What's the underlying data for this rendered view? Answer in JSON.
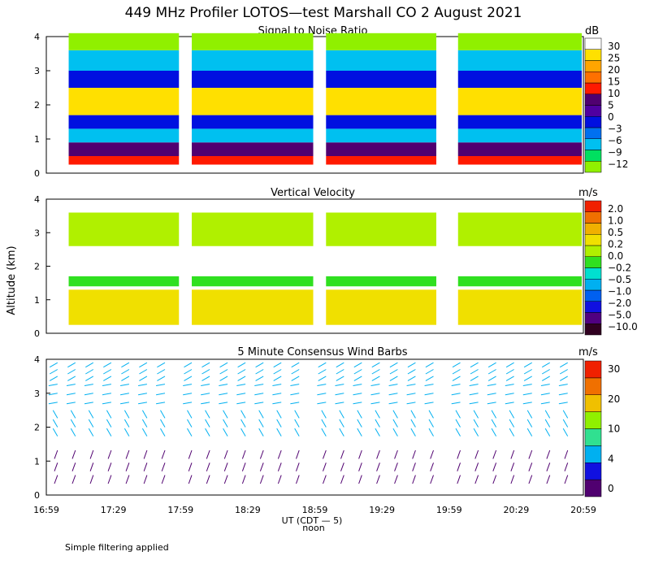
{
  "figure_title": "449 MHz Profiler LOTOS—test Marshall CO  2 August 2021",
  "ylabel": "Altitude (km)",
  "xlabel": "UT  (CDT — 5)",
  "x_sublabel": "noon",
  "footnote": "Simple filtering applied",
  "x_tick_labels": [
    "16:59",
    "17:29",
    "17:59",
    "18:29",
    "18:59",
    "19:29",
    "19:59",
    "20:29",
    "20:59"
  ],
  "colors": {
    "snr": [
      "#90f000",
      "#00e060",
      "#00c0f0",
      "#0070f0",
      "#0010e0",
      "#5000a0",
      "#500070",
      "#ff1a00",
      "#ff7000",
      "#ffa500",
      "#ffe000",
      "#ffffff"
    ],
    "velocity": [
      "#300020",
      "#500080",
      "#1010e0",
      "#0060f0",
      "#00b0f0",
      "#00e0d0",
      "#30e020",
      "#b0f000",
      "#f0e000",
      "#f0b000",
      "#f07000",
      "#f02000"
    ],
    "wind": [
      "#500070",
      "#1010e0",
      "#00b0f0",
      "#30e090",
      "#90f000",
      "#f0c000",
      "#f07000",
      "#f02000"
    ]
  },
  "chart_data": [
    {
      "type": "heatmap",
      "title": "Signal to Noise Ratio",
      "ylabel": "Altitude (km)",
      "ylim": [
        0,
        4
      ],
      "y_ticks": [
        0,
        1,
        2,
        3,
        4
      ],
      "colorbar_unit": "dB",
      "colorbar_ticks": [
        "30",
        "25",
        "20",
        "15",
        "10",
        "5",
        "0",
        "−3",
        "−6",
        "−9",
        "−12"
      ],
      "colorbar_values": [
        -12,
        -9,
        -6,
        -3,
        0,
        5,
        10,
        15,
        20,
        25,
        30
      ],
      "data_segments_ut": [
        [
          "17:09",
          "17:59"
        ],
        [
          "18:04",
          "18:59"
        ],
        [
          "19:04",
          "19:54"
        ],
        [
          "20:03",
          "20:59"
        ]
      ],
      "layers": [
        {
          "alt_range_km": [
            0.25,
            0.5
          ],
          "value_db": 12
        },
        {
          "alt_range_km": [
            0.5,
            0.9
          ],
          "value_db": 7
        },
        {
          "alt_range_km": [
            0.9,
            1.3
          ],
          "value_db": -4
        },
        {
          "alt_range_km": [
            1.3,
            1.7
          ],
          "value_db": 2
        },
        {
          "alt_range_km": [
            1.7,
            2.5
          ],
          "value_db": 28
        },
        {
          "alt_range_km": [
            2.5,
            3.0
          ],
          "value_db": 1
        },
        {
          "alt_range_km": [
            3.0,
            3.6
          ],
          "value_db": -6
        },
        {
          "alt_range_km": [
            3.6,
            4.1
          ],
          "value_db": -12
        }
      ]
    },
    {
      "type": "heatmap",
      "title": "Vertical Velocity",
      "ylabel": "Altitude (km)",
      "ylim": [
        0,
        4
      ],
      "y_ticks": [
        0,
        1,
        2,
        3,
        4
      ],
      "colorbar_unit": "m/s",
      "colorbar_ticks": [
        "2.0",
        "1.0",
        "0.5",
        "0.2",
        "0.0",
        "−0.2",
        "−0.5",
        "−1.0",
        "−2.0",
        "−5.0",
        "−10.0"
      ],
      "colorbar_values": [
        -10.0,
        -5.0,
        -2.0,
        -1.0,
        -0.5,
        -0.2,
        0.0,
        0.2,
        0.5,
        1.0,
        2.0
      ],
      "data_segments_ut": [
        [
          "17:09",
          "17:59"
        ],
        [
          "18:04",
          "18:59"
        ],
        [
          "19:04",
          "19:54"
        ],
        [
          "20:03",
          "20:59"
        ]
      ],
      "layers": [
        {
          "alt_range_km": [
            0.25,
            1.3
          ],
          "value_ms": 0.3
        },
        {
          "alt_range_km": [
            1.4,
            1.7
          ],
          "value_ms": -0.1
        },
        {
          "alt_range_km": [
            2.6,
            3.6
          ],
          "value_ms": 0.1
        }
      ]
    },
    {
      "type": "scatter",
      "title": "5 Minute Consensus Wind Barbs",
      "ylabel": "Altitude (km)",
      "ylim": [
        0,
        4
      ],
      "y_ticks": [
        0,
        1,
        2,
        3,
        4
      ],
      "colorbar_unit": "m/s",
      "colorbar_ticks": [
        "30",
        "20",
        "10",
        "4",
        "0"
      ],
      "colorbar_values": [
        0,
        4,
        10,
        20,
        30
      ],
      "layers": [
        {
          "alt_range_km": [
            0.4,
            1.5
          ],
          "speed_ms": 3,
          "direction_deg": 200
        },
        {
          "alt_range_km": [
            1.6,
            2.4
          ],
          "speed_ms": 5,
          "direction_deg": 330
        },
        {
          "alt_range_km": [
            2.6,
            3.4
          ],
          "speed_ms": 8,
          "direction_deg": 260
        },
        {
          "alt_range_km": [
            3.4,
            4.0
          ],
          "speed_ms": 6,
          "direction_deg": 240
        }
      ]
    }
  ]
}
